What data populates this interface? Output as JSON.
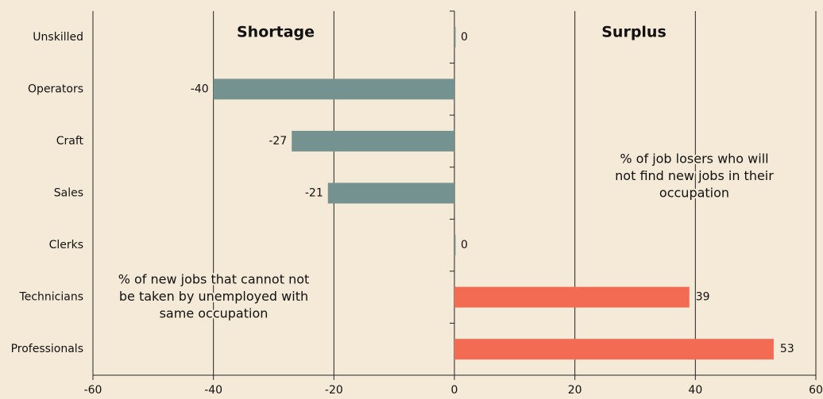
{
  "chart_data": {
    "type": "barh",
    "categories": [
      "Unskilled",
      "Operators",
      "Craft",
      "Sales",
      "Clerks",
      "Technicians",
      "Professionals"
    ],
    "values": [
      0,
      -40,
      -27,
      -21,
      0,
      39,
      53
    ],
    "negative_color": "#74928f",
    "positive_color": "#f26b52",
    "xlim": [
      -60,
      60
    ],
    "xticks": [
      -60,
      -40,
      -20,
      0,
      20,
      40,
      60
    ],
    "grid": true,
    "annotations": [
      {
        "text": "Shortage",
        "bold": true
      },
      {
        "text": "Surplus",
        "bold": true
      },
      {
        "lines": [
          "% of new jobs that cannot not",
          "be taken by unemployed with",
          "same occupation"
        ]
      },
      {
        "lines": [
          "% of job losers who will",
          "not find new jobs in their",
          "occupation"
        ]
      }
    ]
  }
}
